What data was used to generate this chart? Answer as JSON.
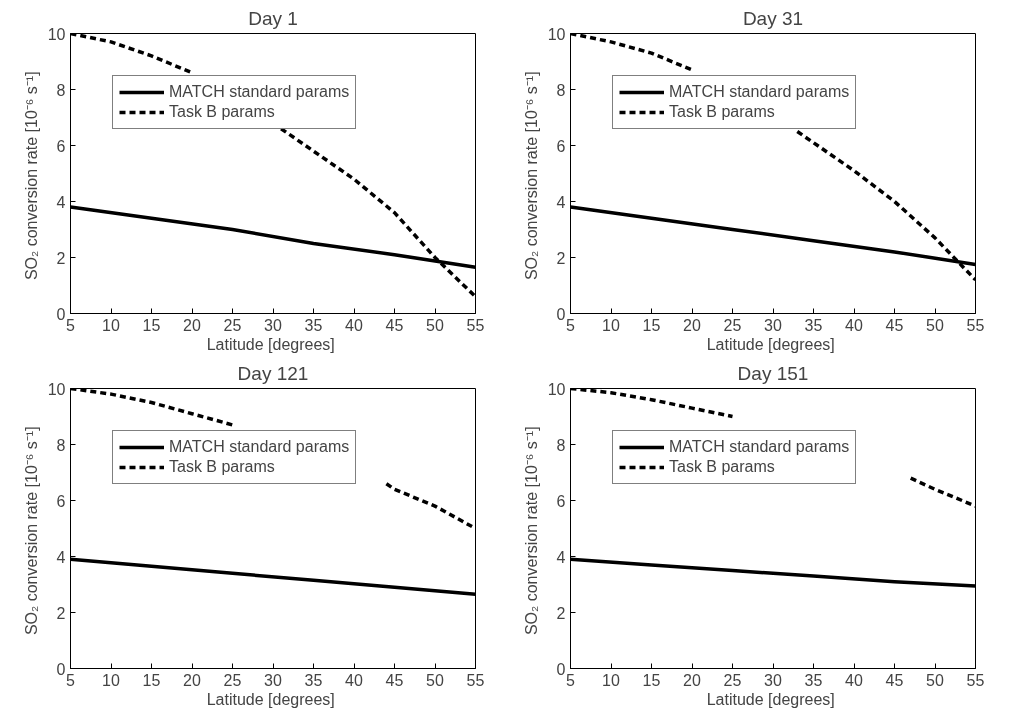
{
  "chart_data": [
    {
      "type": "line",
      "title": "Day 1",
      "xlabel": "Latitude  [degrees]",
      "ylabel": "SO₂ conversion rate  [10⁻⁶ s⁻¹]",
      "xlim": [
        5,
        55
      ],
      "ylim": [
        0,
        10
      ],
      "xticks": [
        5,
        10,
        15,
        20,
        25,
        30,
        35,
        40,
        45,
        50,
        55
      ],
      "yticks": [
        0,
        2,
        4,
        6,
        8,
        10
      ],
      "grid": false,
      "legend": "top left",
      "marker": "none",
      "series": [
        {
          "name": "MATCH standard params",
          "color": "#000000",
          "line_style": "solid",
          "x": [
            5,
            15,
            25,
            35,
            45,
            55
          ],
          "values": [
            3.8,
            3.4,
            3.0,
            2.5,
            2.1,
            1.65
          ]
        },
        {
          "name": "Task B params",
          "color": "#000000",
          "line_style": "dashed",
          "x": [
            5,
            10,
            15,
            20,
            25,
            31,
            35,
            40,
            45,
            50,
            55
          ],
          "values": [
            10,
            9.7,
            9.2,
            8.6,
            null,
            6.6,
            5.8,
            4.8,
            3.6,
            2.0,
            0.6
          ]
        }
      ]
    },
    {
      "type": "line",
      "title": "Day 31",
      "xlabel": "Latitude  [degrees]",
      "ylabel": "SO₂ conversion rate  [10⁻⁶ s⁻¹]",
      "xlim": [
        5,
        55
      ],
      "ylim": [
        0,
        10
      ],
      "xticks": [
        5,
        10,
        15,
        20,
        25,
        30,
        35,
        40,
        45,
        50,
        55
      ],
      "yticks": [
        0,
        2,
        4,
        6,
        8,
        10
      ],
      "grid": false,
      "legend": "top left",
      "marker": "none",
      "series": [
        {
          "name": "MATCH standard params",
          "color": "#000000",
          "line_style": "solid",
          "x": [
            5,
            15,
            25,
            35,
            45,
            55
          ],
          "values": [
            3.8,
            3.4,
            3.0,
            2.6,
            2.2,
            1.75
          ]
        },
        {
          "name": "Task B params",
          "color": "#000000",
          "line_style": "dashed",
          "x": [
            5,
            10,
            15,
            20,
            25,
            33,
            35,
            40,
            45,
            50,
            55
          ],
          "values": [
            10,
            9.7,
            9.3,
            8.7,
            null,
            6.5,
            6.1,
            5.1,
            4.0,
            2.7,
            1.2
          ]
        }
      ]
    },
    {
      "type": "line",
      "title": "Day 121",
      "xlabel": "Latitude  [degrees]",
      "ylabel": "SO₂ conversion rate  [10⁻⁶ s⁻¹]",
      "xlim": [
        5,
        55
      ],
      "ylim": [
        0,
        10
      ],
      "xticks": [
        5,
        10,
        15,
        20,
        25,
        30,
        35,
        40,
        45,
        50,
        55
      ],
      "yticks": [
        0,
        2,
        4,
        6,
        8,
        10
      ],
      "grid": false,
      "legend": "top left",
      "marker": "none",
      "series": [
        {
          "name": "MATCH standard params",
          "color": "#000000",
          "line_style": "solid",
          "x": [
            5,
            15,
            25,
            35,
            45,
            55
          ],
          "values": [
            3.9,
            3.65,
            3.4,
            3.15,
            2.9,
            2.65
          ]
        },
        {
          "name": "Task B params",
          "color": "#000000",
          "line_style": "dashed",
          "x": [
            5,
            10,
            15,
            20,
            25,
            35,
            44,
            45,
            50,
            55
          ],
          "values": [
            10,
            9.8,
            9.5,
            9.1,
            8.7,
            null,
            6.6,
            6.4,
            5.8,
            5.0
          ]
        }
      ]
    },
    {
      "type": "line",
      "title": "Day 151",
      "xlabel": "Latitude  [degrees]",
      "ylabel": "SO₂ conversion rate  [10⁻⁶ s⁻¹]",
      "xlim": [
        5,
        55
      ],
      "ylim": [
        0,
        10
      ],
      "xticks": [
        5,
        10,
        15,
        20,
        25,
        30,
        35,
        40,
        45,
        50,
        55
      ],
      "yticks": [
        0,
        2,
        4,
        6,
        8,
        10
      ],
      "grid": false,
      "legend": "top left",
      "marker": "none",
      "series": [
        {
          "name": "MATCH standard params",
          "color": "#000000",
          "line_style": "solid",
          "x": [
            5,
            15,
            25,
            35,
            45,
            55
          ],
          "values": [
            3.9,
            3.7,
            3.5,
            3.3,
            3.1,
            2.95
          ]
        },
        {
          "name": "Task B params",
          "color": "#000000",
          "line_style": "dashed",
          "x": [
            5,
            10,
            15,
            20,
            25,
            40,
            47,
            50,
            55
          ],
          "values": [
            10,
            9.85,
            9.6,
            9.3,
            9.0,
            null,
            6.8,
            6.4,
            5.8
          ]
        }
      ]
    }
  ]
}
